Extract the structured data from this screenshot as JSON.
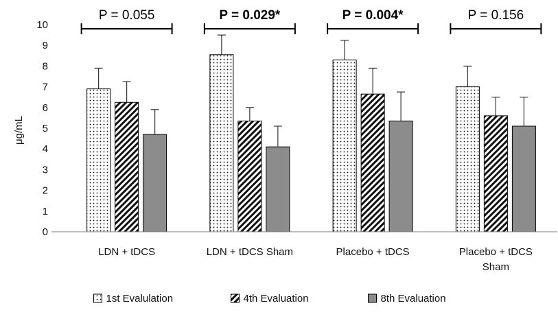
{
  "chart_data": {
    "type": "bar",
    "ylabel": "μg/mL",
    "ylim": [
      0,
      10
    ],
    "yticks": [
      0,
      1,
      2,
      3,
      4,
      5,
      6,
      7,
      8,
      9,
      10
    ],
    "categories": [
      [
        "LDN + tDCS"
      ],
      [
        "LDN + tDCS Sham"
      ],
      [
        "Placebo + tDCS"
      ],
      [
        "Placebo + tDCS",
        "Sham"
      ]
    ],
    "series": [
      {
        "name": "1st Evalulation",
        "pattern": "dots",
        "values": [
          6.9,
          8.55,
          8.3,
          7.0
        ],
        "errors": [
          1.0,
          0.95,
          0.95,
          1.0
        ]
      },
      {
        "name": "4th Evaluation",
        "pattern": "hatch",
        "values": [
          6.25,
          5.35,
          6.65,
          5.6
        ],
        "errors": [
          1.0,
          0.65,
          1.25,
          0.9
        ]
      },
      {
        "name": "8th Evaluation",
        "pattern": "gray",
        "color": "#8c8c8c",
        "values": [
          4.7,
          4.1,
          5.35,
          5.1
        ],
        "errors": [
          1.2,
          1.0,
          1.4,
          1.4
        ]
      }
    ],
    "annotations": [
      {
        "text": "P = 0.055",
        "bold": false
      },
      {
        "text": "P = 0.029*",
        "bold": true
      },
      {
        "text": "P = 0.004*",
        "bold": true
      },
      {
        "text": "P = 0.156",
        "bold": false
      }
    ],
    "legend_position": "bottom-center",
    "grid": false
  }
}
